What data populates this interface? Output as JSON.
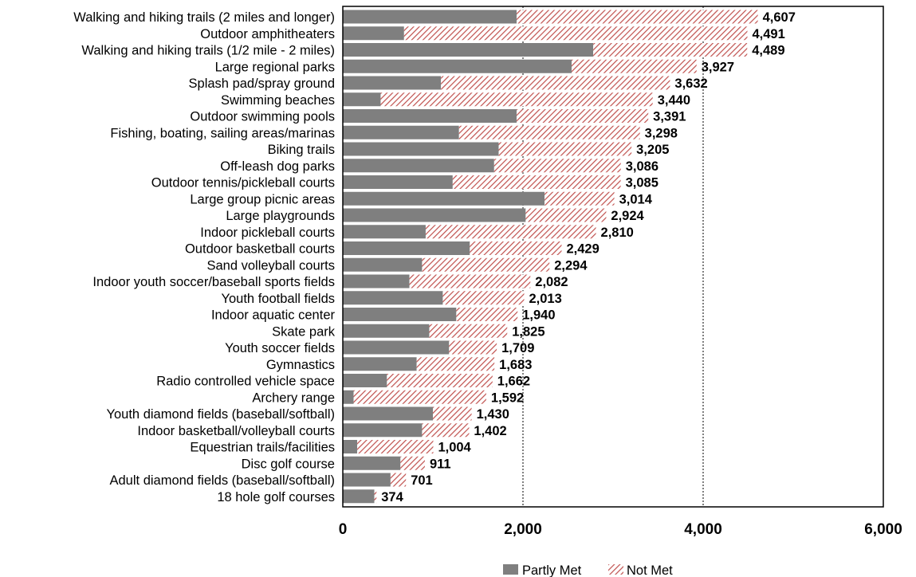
{
  "chart_data": {
    "type": "bar",
    "orientation": "horizontal",
    "stacked": true,
    "categories": [
      "Walking and hiking trails (2 miles and longer)",
      "Outdoor amphitheaters",
      "Walking and hiking trails (1/2 mile - 2 miles)",
      "Large regional parks",
      "Splash pad/spray ground",
      "Swimming beaches",
      "Outdoor swimming pools",
      "Fishing, boating, sailing areas/marinas",
      "Biking trails",
      "Off-leash dog parks",
      "Outdoor tennis/pickleball courts",
      "Large group picnic areas",
      "Large playgrounds",
      "Indoor pickleball courts",
      "Outdoor basketball courts",
      "Sand volleyball courts",
      "Indoor youth soccer/baseball sports fields",
      "Youth football fields",
      "Indoor aquatic center",
      "Skate park",
      "Youth soccer fields",
      "Gymnastics",
      "Radio controlled vehicle space",
      "Archery range",
      "Youth diamond fields (baseball/softball)",
      "Indoor basketball/volleyball courts",
      "Equestrian trails/facilities",
      "Disc golf course",
      "Adult diamond fields (baseball/softball)",
      "18 hole golf courses"
    ],
    "series": [
      {
        "name": "Partly Met",
        "values": [
          1930,
          680,
          2780,
          2540,
          1090,
          420,
          1930,
          1290,
          1730,
          1680,
          1220,
          2240,
          2030,
          920,
          1410,
          880,
          740,
          1110,
          1260,
          960,
          1180,
          820,
          490,
          120,
          1000,
          880,
          160,
          640,
          530,
          350
        ]
      },
      {
        "name": "Not Met",
        "values": [
          2677,
          3811,
          1709,
          1387,
          2542,
          3020,
          1461,
          2008,
          1475,
          1406,
          1865,
          774,
          894,
          1890,
          1019,
          1414,
          1342,
          903,
          680,
          865,
          529,
          863,
          1172,
          1472,
          430,
          522,
          844,
          271,
          171,
          24
        ]
      }
    ],
    "totals_labels": [
      "4,607",
      "4,491",
      "4,489",
      "3,927",
      "3,632",
      "3,440",
      "3,391",
      "3,298",
      "3,205",
      "3,086",
      "3,085",
      "3,014",
      "2,924",
      "2,810",
      "2,429",
      "2,294",
      "2,082",
      "2,013",
      "1,940",
      "1,825",
      "1,709",
      "1,683",
      "1,662",
      "1,592",
      "1,430",
      "1,402",
      "1,004",
      "911",
      "701",
      "374"
    ],
    "xlim": [
      0,
      6000
    ],
    "x_ticks": [
      0,
      2000,
      4000,
      6000
    ],
    "x_tick_labels": [
      "0",
      "2,000",
      "4,000",
      "6,000"
    ],
    "gridlines": {
      "style": "dotted",
      "at": [
        2000,
        4000
      ]
    },
    "colors": {
      "partly_met": "#7f7f7f",
      "not_met_hatch": "#c0504d"
    },
    "legend": {
      "position": "bottom-center",
      "entries": [
        "Partly Met",
        "Not Met"
      ]
    }
  }
}
